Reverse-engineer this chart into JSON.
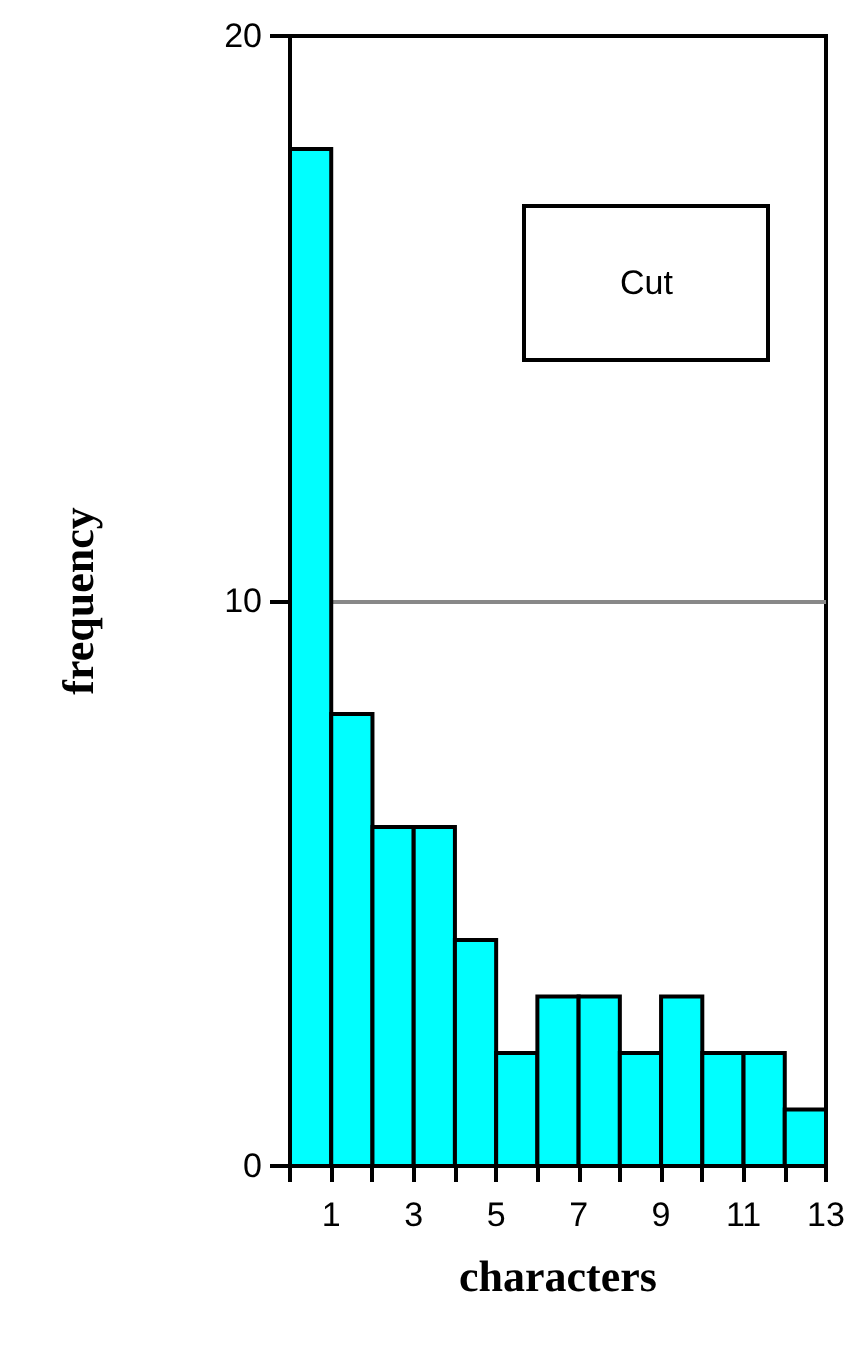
{
  "chart_data": {
    "type": "histogram",
    "xlabel": "characters",
    "ylabel": "frequency",
    "annotations": [
      "Cut"
    ],
    "bins": [
      0,
      1,
      2,
      3,
      4,
      5,
      6,
      7,
      8,
      9,
      10,
      11,
      12,
      13
    ],
    "values": [
      18,
      8,
      6,
      6,
      4,
      2,
      3,
      3,
      2,
      3,
      2,
      2,
      1
    ],
    "color": "#00ffff",
    "xlim": [
      0,
      13
    ],
    "xticks": [
      {
        "value": 0,
        "label": null
      },
      1,
      {
        "value": 2,
        "label": null
      },
      3,
      {
        "value": 4,
        "label": null
      },
      5,
      {
        "value": 6,
        "label": null
      },
      7,
      {
        "value": 8,
        "label": null
      },
      9,
      {
        "value": 10,
        "label": null
      },
      11,
      {
        "value": 12,
        "label": null
      },
      13
    ],
    "ylim": [
      0,
      20
    ],
    "yticks": [
      0,
      10,
      20
    ],
    "grid": "y"
  }
}
